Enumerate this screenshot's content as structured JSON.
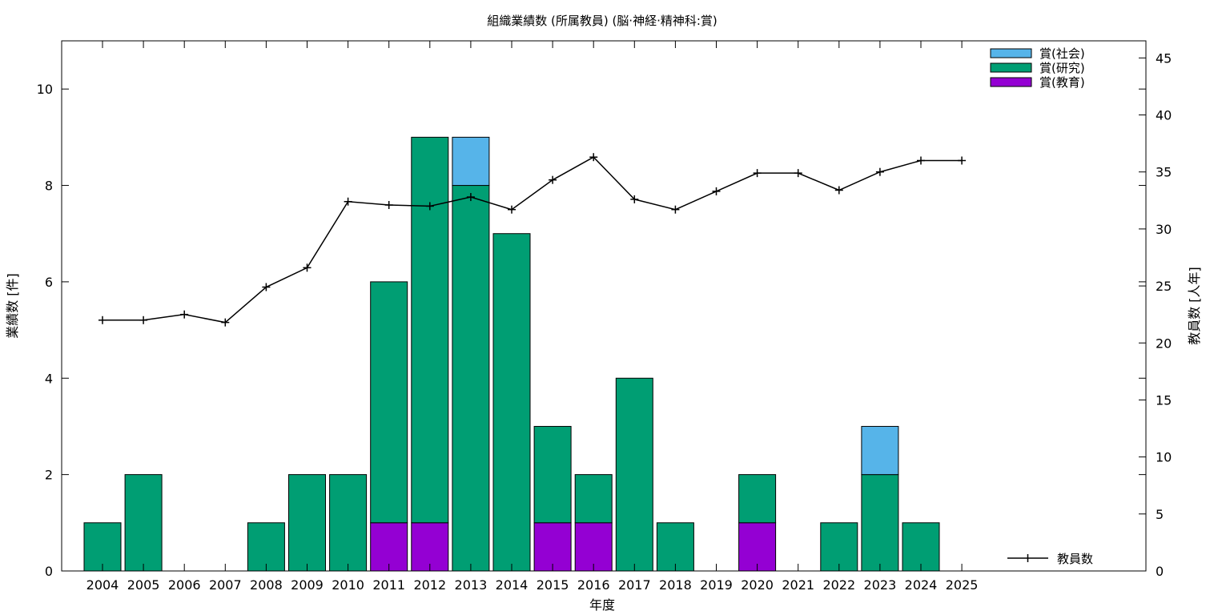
{
  "chart_data": {
    "type": "bar",
    "title": "組織業績数 (所属教員) (脳·神経·精神科:賞)",
    "xlabel": "年度",
    "ylabel": "業績数 [件]",
    "y2label": "教員数 [人年]",
    "categories": [
      "2004",
      "2005",
      "2006",
      "2007",
      "2008",
      "2009",
      "2010",
      "2011",
      "2012",
      "2013",
      "2014",
      "2015",
      "2016",
      "2017",
      "2018",
      "2019",
      "2020",
      "2021",
      "2022",
      "2023",
      "2024",
      "2025"
    ],
    "stacked": true,
    "ylim": [
      0,
      11
    ],
    "yticks": [
      0,
      2,
      4,
      6,
      8,
      10
    ],
    "y2lim": [
      0,
      46.5
    ],
    "y2ticks": [
      0,
      5,
      10,
      15,
      20,
      25,
      30,
      35,
      40,
      45
    ],
    "grid": false,
    "legend_position": "top-right",
    "series": [
      {
        "name": "賞(教育)",
        "color": "#9400d3",
        "values": [
          0,
          0,
          0,
          0,
          0,
          0,
          0,
          1,
          1,
          0,
          0,
          1,
          1,
          0,
          0,
          0,
          1,
          0,
          0,
          0,
          0,
          0
        ]
      },
      {
        "name": "賞(研究)",
        "color": "#009e73",
        "values": [
          1,
          2,
          0,
          0,
          1,
          2,
          2,
          5,
          8,
          8,
          7,
          2,
          1,
          4,
          1,
          0,
          1,
          0,
          1,
          2,
          1,
          0
        ]
      },
      {
        "name": "賞(社会)",
        "color": "#56b4e9",
        "values": [
          0,
          0,
          0,
          0,
          0,
          0,
          0,
          0,
          0,
          1,
          0,
          0,
          0,
          0,
          0,
          0,
          0,
          0,
          0,
          1,
          0,
          0
        ]
      }
    ],
    "line_series": {
      "name": "教員数",
      "axis": "y2",
      "color": "#000000",
      "marker": "plus",
      "values": [
        22.0,
        22.0,
        22.5,
        21.8,
        24.9,
        26.6,
        32.4,
        32.1,
        32.0,
        32.8,
        31.7,
        34.3,
        36.3,
        32.6,
        31.7,
        33.3,
        34.9,
        34.9,
        33.4,
        35.0,
        36.0,
        36.0
      ]
    }
  }
}
